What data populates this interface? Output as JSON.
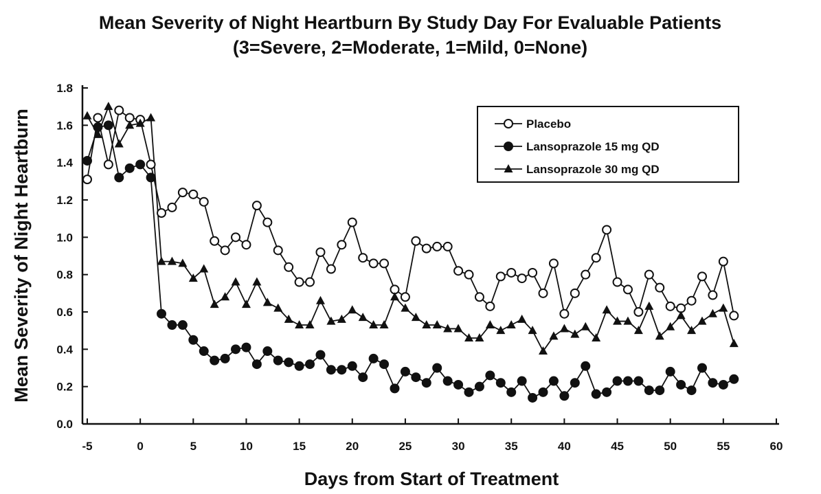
{
  "chart_data": {
    "type": "line",
    "title": "Mean Severity of Night Heartburn By Study Day For Evaluable Patients",
    "subtitle": "(3=Severe, 2=Moderate, 1=Mild, 0=None)",
    "x_label": "Days from Start of Treatment",
    "y_label": "Mean Severity of Night Heartburn",
    "x": [
      -5,
      -4,
      -3,
      -2,
      -1,
      0,
      1,
      2,
      3,
      4,
      5,
      6,
      7,
      8,
      9,
      10,
      11,
      12,
      13,
      14,
      15,
      16,
      17,
      18,
      19,
      20,
      21,
      22,
      23,
      24,
      25,
      26,
      27,
      28,
      29,
      30,
      31,
      32,
      33,
      34,
      35,
      36,
      37,
      38,
      39,
      40,
      41,
      42,
      43,
      44,
      45,
      46,
      47,
      48,
      49,
      50,
      51,
      52,
      53,
      54,
      55,
      56
    ],
    "series": [
      {
        "name": "Placebo",
        "color": "#111111",
        "marker": "open-circle",
        "values": [
          1.31,
          1.64,
          1.39,
          1.68,
          1.64,
          1.63,
          1.39,
          1.13,
          1.16,
          1.24,
          1.23,
          1.19,
          0.98,
          0.93,
          1.0,
          0.96,
          1.17,
          1.08,
          0.93,
          0.84,
          0.76,
          0.76,
          0.92,
          0.83,
          0.96,
          1.08,
          0.89,
          0.86,
          0.86,
          0.72,
          0.68,
          0.98,
          0.94,
          0.95,
          0.95,
          0.82,
          0.8,
          0.68,
          0.63,
          0.79,
          0.81,
          0.78,
          0.81,
          0.7,
          0.86,
          0.59,
          0.7,
          0.8,
          0.89,
          1.04,
          0.76,
          0.72,
          0.6,
          0.8,
          0.73,
          0.63,
          0.62,
          0.66,
          0.79,
          0.69,
          0.87,
          0.58
        ]
      },
      {
        "name": "Lansoprazole 15 mg QD",
        "color": "#111111",
        "marker": "filled-circle",
        "values": [
          1.41,
          1.59,
          1.6,
          1.32,
          1.37,
          1.39,
          1.32,
          0.59,
          0.53,
          0.53,
          0.45,
          0.39,
          0.34,
          0.35,
          0.4,
          0.41,
          0.32,
          0.39,
          0.34,
          0.33,
          0.31,
          0.32,
          0.37,
          0.29,
          0.29,
          0.31,
          0.25,
          0.35,
          0.32,
          0.19,
          0.28,
          0.25,
          0.22,
          0.3,
          0.23,
          0.21,
          0.17,
          0.2,
          0.26,
          0.22,
          0.17,
          0.23,
          0.14,
          0.17,
          0.23,
          0.15,
          0.22,
          0.31,
          0.16,
          0.17,
          0.23,
          0.23,
          0.23,
          0.18,
          0.18,
          0.28,
          0.21,
          0.18,
          0.3,
          0.22,
          0.21,
          0.24
        ]
      },
      {
        "name": "Lansoprazole 30 mg QD",
        "color": "#111111",
        "marker": "triangle",
        "values": [
          1.65,
          1.55,
          1.7,
          1.5,
          1.6,
          1.61,
          1.64,
          0.87,
          0.87,
          0.86,
          0.78,
          0.83,
          0.64,
          0.68,
          0.76,
          0.64,
          0.76,
          0.65,
          0.62,
          0.56,
          0.53,
          0.53,
          0.66,
          0.55,
          0.56,
          0.61,
          0.57,
          0.53,
          0.53,
          0.68,
          0.62,
          0.57,
          0.53,
          0.53,
          0.51,
          0.51,
          0.46,
          0.46,
          0.53,
          0.5,
          0.53,
          0.56,
          0.5,
          0.39,
          0.47,
          0.51,
          0.48,
          0.52,
          0.46,
          0.61,
          0.55,
          0.55,
          0.5,
          0.63,
          0.47,
          0.52,
          0.58,
          0.5,
          0.55,
          0.59,
          0.62,
          0.43
        ]
      }
    ],
    "xlim": [
      -5,
      60
    ],
    "xticks": [
      -5,
      0,
      5,
      10,
      15,
      20,
      25,
      30,
      35,
      40,
      45,
      50,
      55,
      60
    ],
    "ylim": [
      0,
      1.8
    ],
    "yticks": [
      {
        "value": 0,
        "label": "0.0"
      },
      0.2,
      0.4,
      0.6,
      0.8,
      {
        "value": 1,
        "label": "1.0"
      },
      1.2,
      1.4,
      1.6,
      1.8
    ],
    "legend": "upper right",
    "grid": false
  }
}
